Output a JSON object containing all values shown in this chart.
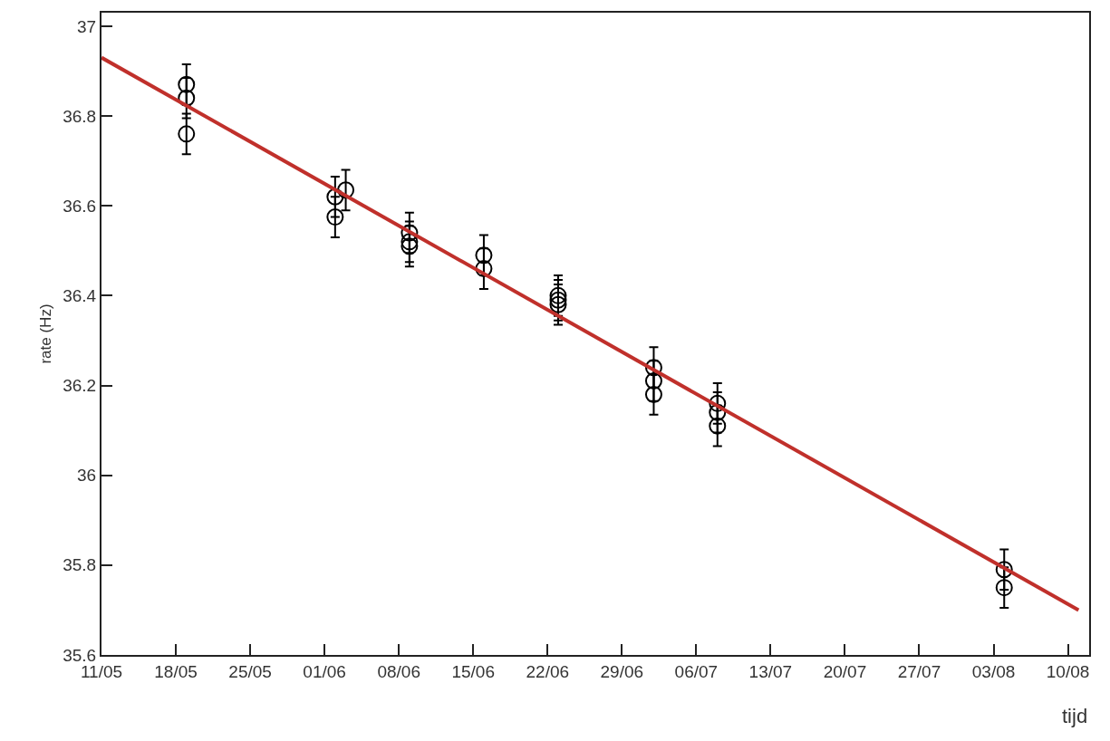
{
  "chart_data": {
    "type": "scatter",
    "xlabel": "tijd",
    "ylabel": "rate (Hz)",
    "xlim": [
      "--05-11",
      "--08-12"
    ],
    "xticks": [
      {
        "value": "--05-11",
        "label": "11/05"
      },
      {
        "value": "--05-18",
        "label": "18/05"
      },
      {
        "value": "--05-25",
        "label": "25/05"
      },
      {
        "value": "--06-01",
        "label": "01/06"
      },
      {
        "value": "--06-08",
        "label": "08/06"
      },
      {
        "value": "--06-15",
        "label": "15/06"
      },
      {
        "value": "--06-22",
        "label": "22/06"
      },
      {
        "value": "--06-29",
        "label": "29/06"
      },
      {
        "value": "--07-06",
        "label": "06/07"
      },
      {
        "value": "--07-13",
        "label": "13/07"
      },
      {
        "value": "--07-20",
        "label": "20/07"
      },
      {
        "value": "--07-27",
        "label": "27/07"
      },
      {
        "value": "--08-03",
        "label": "03/08"
      },
      {
        "value": "--08-10",
        "label": "10/08"
      }
    ],
    "ylim": [
      35.6,
      37.03
    ],
    "yticks": [
      35.6,
      35.8,
      36,
      36.2,
      36.4,
      36.6,
      36.8,
      37
    ],
    "grid": false,
    "marker": "circle",
    "series": [
      {
        "color": "#000000",
        "x": [
          "--05-19",
          "--05-19",
          "--05-19",
          "--06-02",
          "--06-02",
          "--06-03",
          "--06-09",
          "--06-09",
          "--06-09",
          "--06-16",
          "--06-16",
          "--06-23",
          "--06-23",
          "--06-23",
          "--07-02",
          "--07-02",
          "--07-02",
          "--07-08",
          "--07-08",
          "--07-08",
          "--08-04",
          "--08-04"
        ],
        "values": [
          36.87,
          36.84,
          36.76,
          36.575,
          36.62,
          36.635,
          36.54,
          36.52,
          36.51,
          36.49,
          36.46,
          36.38,
          36.4,
          36.39,
          36.24,
          36.21,
          36.18,
          36.16,
          36.14,
          36.11,
          35.79,
          35.75
        ],
        "errors": [
          0.045,
          0.045,
          0.045,
          0.045,
          0.045,
          0.045,
          0.045,
          0.045,
          0.045,
          0.045,
          0.045,
          0.045,
          0.045,
          0.045,
          0.045,
          0.045,
          0.045,
          0.045,
          0.045,
          0.045,
          0.045,
          0.045
        ]
      },
      {
        "type": "line",
        "color": "#c0302b",
        "marker": "none",
        "x": [
          "--05-11",
          "--08-11"
        ],
        "values": [
          36.93,
          35.7
        ]
      }
    ]
  }
}
